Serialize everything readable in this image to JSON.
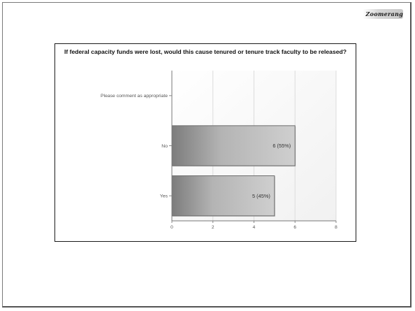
{
  "logo": {
    "text": "Zoomerang"
  },
  "chart_data": {
    "type": "bar",
    "orientation": "horizontal",
    "title": "If federal capacity funds were lost, would this cause tenured or tenure track faculty to be released?",
    "categories": [
      "Please comment as appropriate",
      "No",
      "Yes"
    ],
    "values": [
      0,
      6,
      5
    ],
    "data_labels": [
      "",
      "6 (55%)",
      "5 (45%)"
    ],
    "xlim": [
      0,
      8
    ],
    "xticks": [
      0,
      2,
      4,
      6,
      8
    ],
    "grid": true
  }
}
